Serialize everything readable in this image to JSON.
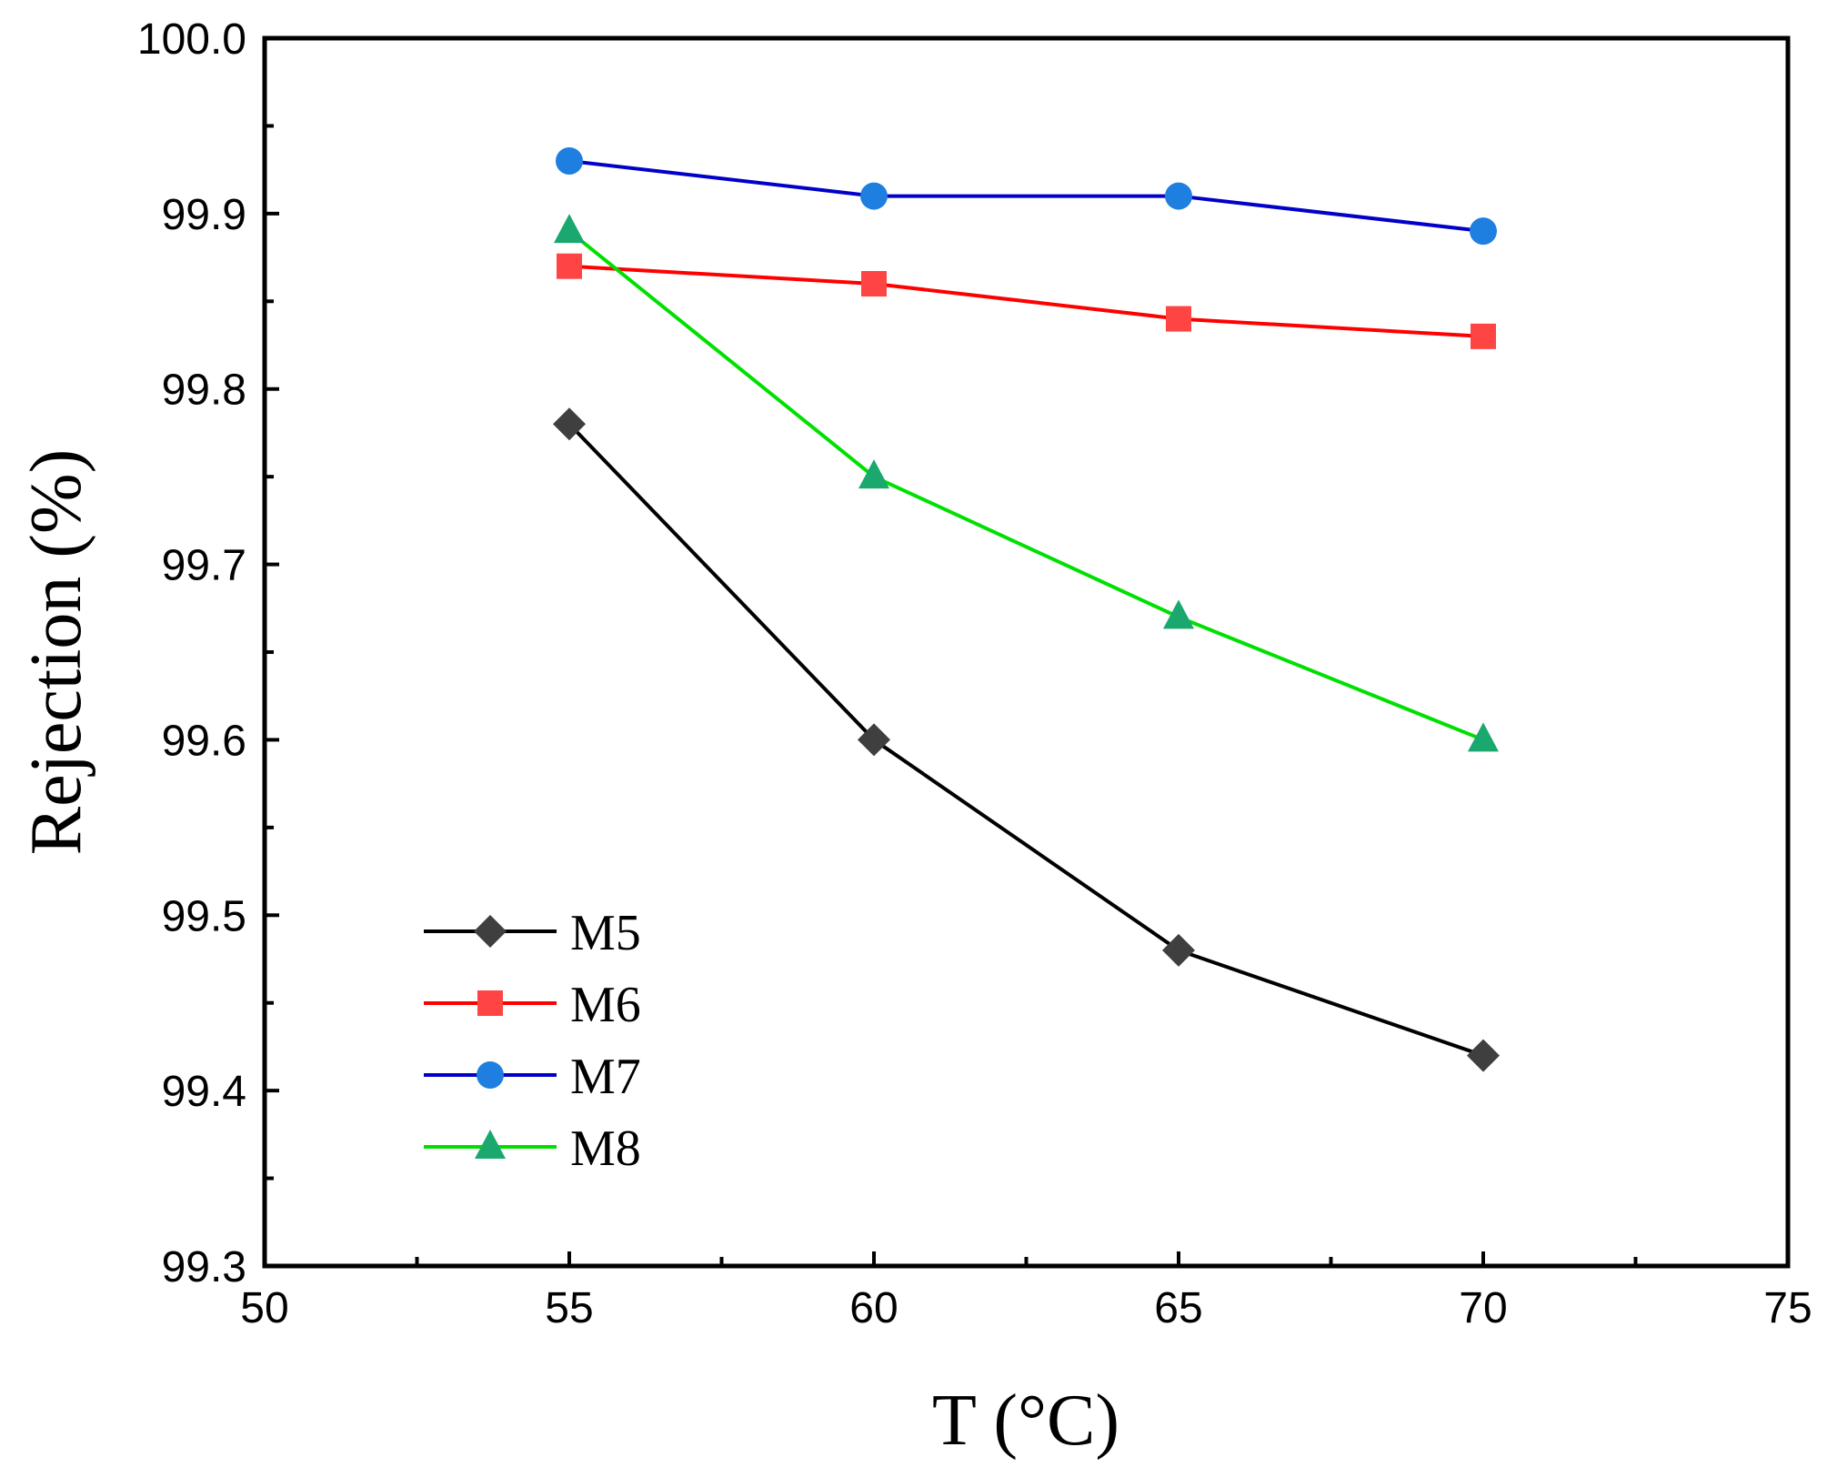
{
  "chart_data": {
    "type": "line",
    "title": "",
    "xlabel": "T (°C)",
    "ylabel": "Rejection (%)",
    "xlim": [
      50,
      75
    ],
    "ylim": [
      99.3,
      100.0
    ],
    "x_ticks": [
      "50",
      "55",
      "60",
      "65",
      "70",
      "75"
    ],
    "y_ticks": [
      "99.3",
      "99.4",
      "99.5",
      "99.6",
      "99.7",
      "99.8",
      "99.9",
      "100.0"
    ],
    "grid": false,
    "legend_position": "bottom-left",
    "x": [
      55,
      60,
      65,
      70
    ],
    "series": [
      {
        "name": "M5",
        "marker": "diamond",
        "line_color": "#000000",
        "marker_color": "#3f3f3f",
        "values": [
          99.78,
          99.6,
          99.48,
          99.42
        ]
      },
      {
        "name": "M6",
        "marker": "square",
        "line_color": "#ff0000",
        "marker_color": "#ff4444",
        "values": [
          99.87,
          99.86,
          99.84,
          99.83
        ]
      },
      {
        "name": "M7",
        "marker": "circle",
        "line_color": "#0000c8",
        "marker_color": "#1e7fe0",
        "values": [
          99.93,
          99.91,
          99.91,
          99.89
        ]
      },
      {
        "name": "M8",
        "marker": "triangle",
        "line_color": "#00e000",
        "marker_color": "#1aa86e",
        "values": [
          99.89,
          99.75,
          99.67,
          99.6
        ]
      }
    ]
  }
}
